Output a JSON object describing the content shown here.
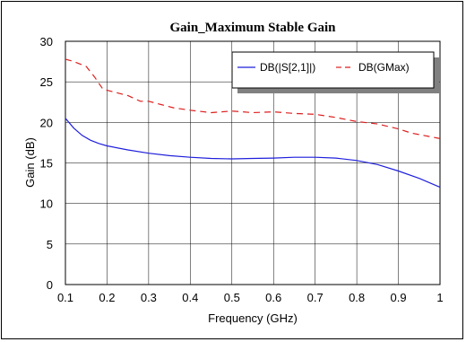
{
  "chart_data": {
    "type": "line",
    "title": "Gain_Maximum Stable Gain",
    "xlabel": "Frequency (GHz)",
    "ylabel": "Gain (dB)",
    "xlim": [
      0.1,
      1.0
    ],
    "ylim": [
      0,
      30
    ],
    "x_ticks": [
      0.1,
      0.2,
      0.3,
      0.4,
      0.5,
      0.6,
      0.7,
      0.8,
      0.9,
      1.0
    ],
    "x_tick_labels": [
      "0.1",
      "0.2",
      "0.3",
      "0.4",
      "0.5",
      "0.6",
      "0.7",
      "0.8",
      "0.9",
      "1"
    ],
    "y_ticks": [
      0,
      5,
      10,
      15,
      20,
      25,
      30
    ],
    "y_tick_labels": [
      "0",
      "5",
      "10",
      "15",
      "20",
      "25",
      "30"
    ],
    "grid": true,
    "legend_position": "top-right",
    "series": [
      {
        "name": "DB(|S[2,1]|)",
        "color": "#1f1fdc",
        "style": "solid",
        "x": [
          0.1,
          0.12,
          0.14,
          0.16,
          0.18,
          0.2,
          0.25,
          0.3,
          0.35,
          0.4,
          0.45,
          0.5,
          0.55,
          0.6,
          0.65,
          0.7,
          0.75,
          0.8,
          0.85,
          0.9,
          0.95,
          1.0
        ],
        "values": [
          20.5,
          19.3,
          18.4,
          17.8,
          17.4,
          17.1,
          16.6,
          16.2,
          15.9,
          15.7,
          15.55,
          15.5,
          15.55,
          15.6,
          15.7,
          15.7,
          15.6,
          15.3,
          14.8,
          14.0,
          13.1,
          12.0
        ]
      },
      {
        "name": "DB(GMax)",
        "color": "#dc1f1f",
        "style": "dashed",
        "x": [
          0.1,
          0.12,
          0.15,
          0.17,
          0.19,
          0.22,
          0.25,
          0.28,
          0.3,
          0.33,
          0.36,
          0.4,
          0.45,
          0.5,
          0.55,
          0.6,
          0.65,
          0.7,
          0.75,
          0.8,
          0.85,
          0.9,
          0.93,
          0.96,
          1.0
        ],
        "values": [
          27.8,
          27.5,
          26.9,
          25.6,
          24.1,
          23.7,
          23.3,
          22.6,
          22.6,
          22.2,
          21.8,
          21.5,
          21.2,
          21.4,
          21.2,
          21.3,
          21.1,
          21.0,
          20.6,
          20.1,
          19.8,
          19.2,
          18.7,
          18.4,
          18.0
        ]
      }
    ]
  }
}
